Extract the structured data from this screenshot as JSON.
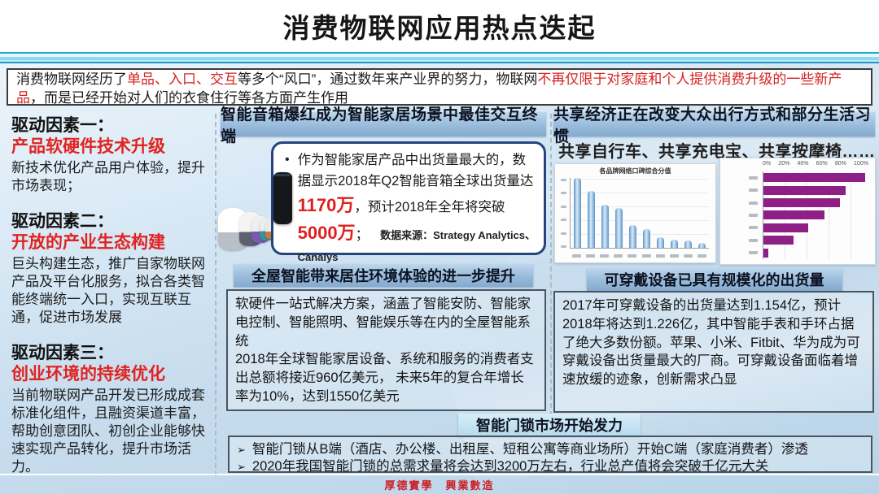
{
  "title": "消费物联网应用热点迭起",
  "intro": {
    "segments": [
      {
        "text": "消费物联网经历了",
        "style": "normal"
      },
      {
        "text": "单品、入口、交互",
        "style": "red"
      },
      {
        "text": "等多个“风口”，通过数年来产业界的努力，物联网",
        "style": "normal"
      },
      {
        "text": "不再仅限于对家庭和个人提供消费升级的一些新产品",
        "style": "red"
      },
      {
        "text": "，而是已经开始对人们的衣食住行等各方面产生作用",
        "style": "normal"
      }
    ]
  },
  "left_panel": {
    "factors": [
      {
        "heading": "驱动因素一：",
        "sub": "产品软硬件技术升级",
        "body": "新技术优化产品用户体验，提升市场表现；"
      },
      {
        "heading": "驱动因素二：",
        "sub": "开放的产业生态构建",
        "body": "巨头构建生态，推广自家物联网产品及平台化服务，拟合各类智能终端统一入口，实现互联互通，促进市场发展"
      },
      {
        "heading": "驱动因素三：",
        "sub": "创业环境的持续优化",
        "body": "当前物联网产品开发已形成成套标准化组件，且融资渠道丰富，帮助创意团队、初创企业能够快速实现产品转化，提升市场活力。"
      }
    ]
  },
  "sections": {
    "speaker": {
      "header": "智能音箱爆红成为智能家居场景中最佳交互终端",
      "bullet_glyph": "•",
      "text_segments": [
        {
          "text": "作为智能家居产品中出货量最大的，数据显示2018年Q2智能音箱全球出货量达",
          "style": "normal"
        },
        {
          "text": "1170万",
          "style": "red-bold"
        },
        {
          "text": "，预计2018年全年将突破",
          "style": "normal"
        },
        {
          "text": "5000万",
          "style": "red-bold"
        },
        {
          "text": "；",
          "style": "normal"
        }
      ],
      "source": "数据来源：Strategy Analytics、Canalys"
    },
    "sharing": {
      "header": "共享经济正在改变大众出行方式和部分生活习惯",
      "subtitle": "共享自行车、共享充电宝、共享按摩椅……"
    },
    "whole_home": {
      "header": "全屋智能带来居住环境体验的进一步提升",
      "paragraphs": [
        "软硬件一站式解决方案，涵盖了智能安防、智能家电控制、智能照明、智能娱乐等在内的全屋智能系统",
        "2018年全球智能家居设备、系统和服务的消费者支出总额将接近960亿美元， 未来5年的复合年增长率为10%，达到1550亿美元"
      ]
    },
    "wearable": {
      "header": "可穿戴设备已具有规模化的出货量",
      "body": "2017年可穿戴设备的出货量达到1.154亿，预计2018年将达到1.226亿，其中智能手表和手环占据了绝大多数份额。苹果、小米、Fitbit、华为成为可穿戴设备出货量最大的厂商。可穿戴设备面临着增速放缓的迹象，创新需求凸显"
    },
    "door_lock": {
      "title": "智能门锁市场开始发力",
      "bullet_glyph": "➢",
      "bullets": [
        "智能门锁从B端（酒店、办公楼、出租屋、短租公寓等商业场所）开始C端（家庭消费者）渗透",
        "2020年我国智能门锁的总需求量将会达到3200万左右，行业总产值将会突破千亿元大关"
      ]
    }
  },
  "footer": {
    "motto": "厚德實學　興業數造"
  },
  "colors": {
    "accent_red": "#d42322",
    "header_bar_blue": "#9dbedd",
    "page_bg": "#cfe3f1",
    "chart1_bar": "#5b93c9",
    "chart2_bar": "#8e1f86"
  },
  "chart_data": [
    {
      "type": "bar",
      "title": "各品牌网络口碑综合分值",
      "categories": [
        "",
        "",
        "",
        "",
        "",
        "",
        "",
        "",
        "",
        ""
      ],
      "values": [
        100,
        81,
        62,
        57,
        33,
        27,
        15,
        12,
        10,
        7
      ],
      "ylim": [
        0,
        100
      ],
      "bar_color": "#5b93c9",
      "grid": true,
      "note": "axis and category labels illegible in source; values are relative bar heights (%)"
    },
    {
      "type": "barh",
      "title": "",
      "x_ticks": [
        "0%",
        "20%",
        "40%",
        "60%",
        "80%",
        "100%"
      ],
      "categories": [
        "",
        "",
        "",
        "",
        "",
        "",
        ""
      ],
      "values": [
        97,
        78,
        73,
        58,
        43,
        29,
        5
      ],
      "xlim": [
        0,
        100
      ],
      "bar_color": "#8e1f86",
      "grid": true,
      "note": "category labels illegible in source; values estimated (%)"
    }
  ]
}
